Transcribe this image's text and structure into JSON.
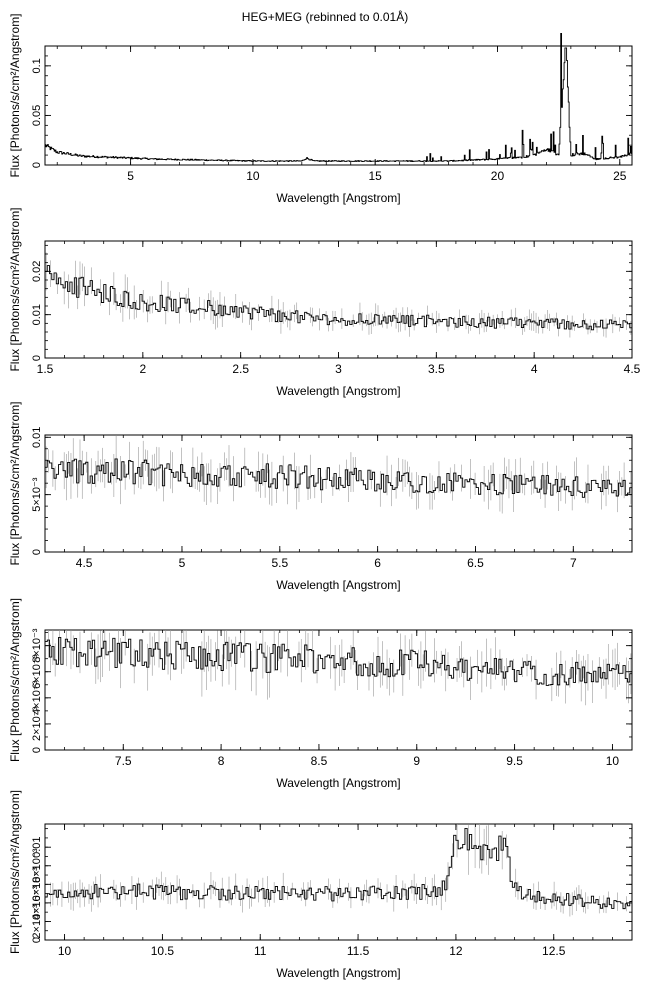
{
  "title": "HEG+MEG (rebinned to 0.01Å)",
  "chart_data": [
    {
      "type": "line",
      "xlabel": "Wavelength [Angstrom]",
      "ylabel": "Flux [Photons/s/cm²/Angstrom]",
      "xlim": [
        1.5,
        25.5
      ],
      "ylim": [
        0,
        0.12
      ],
      "xticks": [
        5,
        10,
        15,
        20,
        25
      ],
      "yticks": [
        0,
        0.05,
        0.1
      ],
      "yticklabels": [
        "0",
        "0.05",
        "0.1"
      ],
      "grid": false,
      "series": [
        {
          "x": [
            1.5,
            2,
            3,
            4,
            5,
            6,
            8,
            10,
            12,
            12.2,
            12.5,
            14,
            16,
            18,
            19,
            20,
            21,
            21.5,
            22,
            22.5,
            22.8,
            23,
            23.5,
            24,
            25,
            25.5
          ],
          "y": [
            0.02,
            0.013,
            0.009,
            0.008,
            0.007,
            0.006,
            0.005,
            0.004,
            0.004,
            0.007,
            0.004,
            0.004,
            0.004,
            0.004,
            0.005,
            0.006,
            0.008,
            0.01,
            0.016,
            0.01,
            0.118,
            0.01,
            0.012,
            0.006,
            0.008,
            0.012
          ]
        }
      ]
    },
    {
      "type": "line",
      "xlabel": "Wavelength [Angstrom]",
      "ylabel": "Flux [Photons/s/cm²/Angstrom]",
      "xlim": [
        1.5,
        4.5
      ],
      "ylim": [
        0,
        0.027
      ],
      "xticks": [
        1.5,
        2,
        2.5,
        3,
        3.5,
        4,
        4.5
      ],
      "yticks": [
        0,
        0.01,
        0.02
      ],
      "yticklabels": [
        "0",
        "0.01",
        "0.02"
      ],
      "grid": false,
      "series": [
        {
          "x": [
            1.5,
            1.6,
            1.7,
            1.8,
            1.9,
            2,
            2.2,
            2.5,
            2.75,
            3,
            3.5,
            4,
            4.5
          ],
          "y": [
            0.019,
            0.018,
            0.016,
            0.015,
            0.014,
            0.013,
            0.012,
            0.011,
            0.0095,
            0.009,
            0.0085,
            0.008,
            0.0075
          ]
        }
      ]
    },
    {
      "type": "line",
      "xlabel": "Wavelength [Angstrom]",
      "ylabel": "Flux [Photons/s/cm²/Angstrom]",
      "xlim": [
        4.3,
        7.3
      ],
      "ylim": [
        0,
        0.0102
      ],
      "xticks": [
        4.5,
        5,
        5.5,
        6,
        6.5,
        7
      ],
      "yticks": [
        0,
        0.005,
        0.01
      ],
      "yticklabels": [
        "0",
        "5×10⁻³",
        "0.01"
      ],
      "grid": false,
      "series": [
        {
          "x": [
            4.3,
            4.5,
            4.7,
            5,
            5.3,
            5.5,
            6,
            6.5,
            7,
            7.3
          ],
          "y": [
            0.0072,
            0.0071,
            0.007,
            0.0068,
            0.0067,
            0.0066,
            0.0062,
            0.0059,
            0.0057,
            0.0055
          ]
        }
      ]
    },
    {
      "type": "line",
      "xlabel": "Wavelength [Angstrom]",
      "ylabel": "Flux [Photons/s/cm²/Angstrom]",
      "xlim": [
        7.1,
        10.1
      ],
      "ylim": [
        0,
        0.0092
      ],
      "xticks": [
        7.5,
        8,
        8.5,
        9,
        9.5,
        10
      ],
      "yticks": [
        0,
        0.002,
        0.004,
        0.006,
        0.008
      ],
      "yticklabels": [
        "0",
        "2×10⁻³",
        "4×10⁻³",
        "6×10⁻³",
        "8×10⁻³"
      ],
      "grid": false,
      "series": [
        {
          "x": [
            7.1,
            7.5,
            8,
            8.5,
            9,
            9.3,
            9.5,
            9.8,
            10.1
          ],
          "y": [
            0.0076,
            0.0074,
            0.0072,
            0.0069,
            0.0066,
            0.0063,
            0.006,
            0.0058,
            0.0058
          ]
        }
      ]
    },
    {
      "type": "line",
      "xlabel": "Wavelength [Angstrom]",
      "ylabel": "Flux [Photons/s/cm²/Angstrom]",
      "xlim": [
        9.9,
        12.9
      ],
      "ylim": [
        0,
        0.0125
      ],
      "xticks": [
        10,
        10.5,
        11,
        11.5,
        12,
        12.5
      ],
      "yticks": [
        0,
        0.002,
        0.004,
        0.006,
        0.008,
        0.01
      ],
      "yticklabels": [
        "0",
        "2×10⁻³",
        "4×10⁻³",
        "6×10⁻³",
        "8×10⁻³",
        "0.01"
      ],
      "grid": false,
      "series": [
        {
          "x": [
            9.9,
            10.5,
            11,
            11.5,
            11.9,
            11.95,
            12.0,
            12.05,
            12.1,
            12.15,
            12.2,
            12.25,
            12.3,
            12.35,
            12.5,
            12.9
          ],
          "y": [
            0.0052,
            0.0052,
            0.005,
            0.005,
            0.0052,
            0.006,
            0.0105,
            0.0108,
            0.0095,
            0.0098,
            0.0102,
            0.0095,
            0.0058,
            0.005,
            0.0045,
            0.0038
          ]
        }
      ]
    }
  ]
}
